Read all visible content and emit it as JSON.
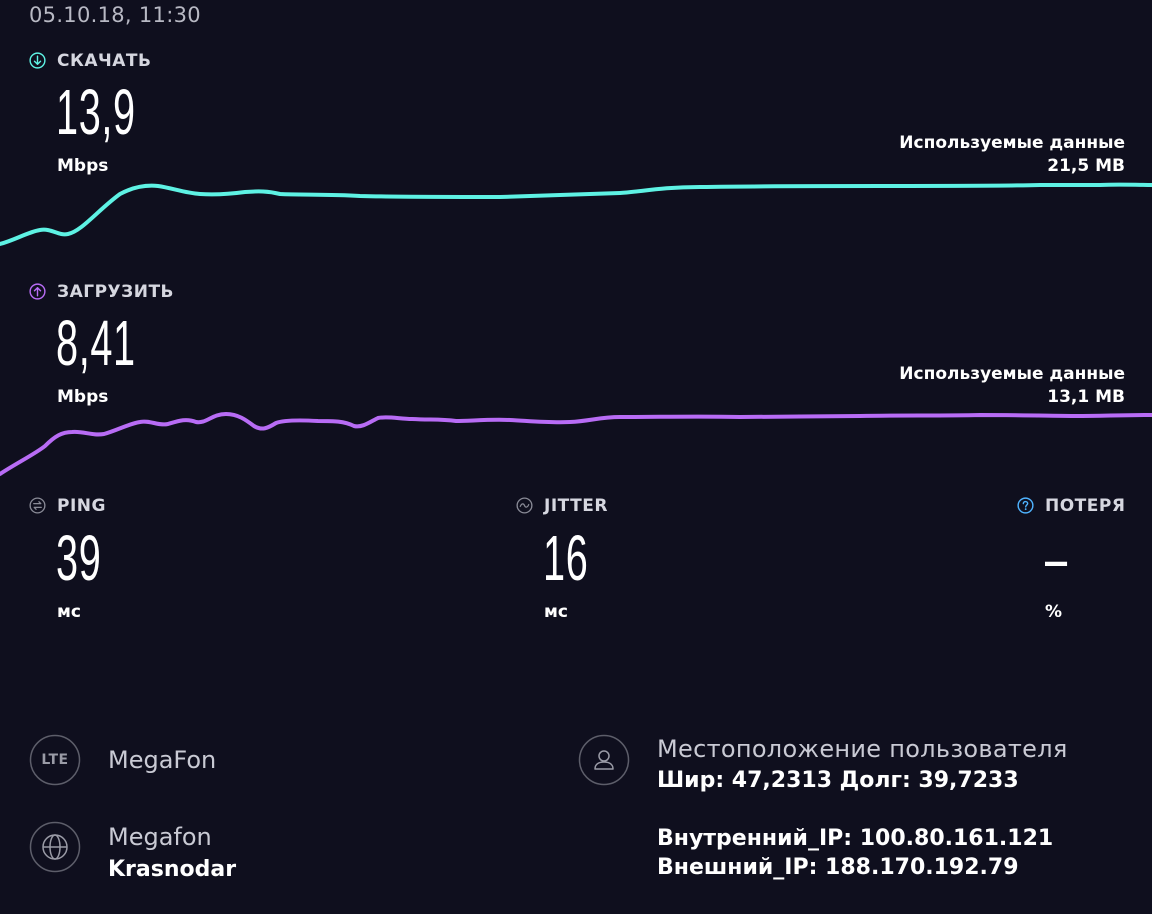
{
  "timestamp": "05.10.18, 11:30",
  "download": {
    "label": "СКАЧАТЬ",
    "value": "13,9",
    "unit": "Mbps",
    "used_data_label": "Используемые данные",
    "used_data_value": "21,5 MB",
    "color": "#5ef2e4",
    "icon": "arrow-down-circle-icon"
  },
  "upload": {
    "label": "ЗАГРУЗИТЬ",
    "value": "8,41",
    "unit": "Mbps",
    "used_data_label": "Используемые данные",
    "used_data_value": "13,1 MB",
    "color": "#b86cf5",
    "icon": "arrow-up-circle-icon"
  },
  "ping": {
    "label": "PING",
    "value": "39",
    "unit": "мс",
    "icon": "ping-icon"
  },
  "jitter": {
    "label": "JITTER",
    "value": "16",
    "unit": "мс",
    "icon": "jitter-icon"
  },
  "loss": {
    "label": "ПОТЕРЯ",
    "value": "–",
    "unit": "%",
    "icon": "question-circle-icon",
    "icon_color": "#4fb3ff"
  },
  "network": {
    "type_badge": "LTE",
    "carrier": "MegaFon",
    "provider_name": "Megafon",
    "provider_city": "Krasnodar"
  },
  "location": {
    "title": "Местоположение пользователя",
    "coords": "Шир: 47,2313 Долг: 39,7233",
    "internal_ip": "Внутренний_IP: 100.80.161.121",
    "external_ip": "Внешний_IP: 188.170.192.79"
  }
}
